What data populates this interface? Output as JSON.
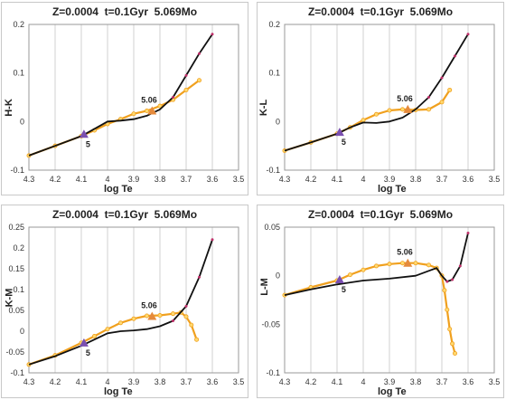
{
  "chart_data": [
    {
      "type": "line",
      "title": "Z=0.0004  t=0.1Gyr  5.069Mo",
      "xlabel": "log Te",
      "ylabel": "H-K",
      "xlim": [
        4.3,
        3.5
      ],
      "ylim": [
        -0.1,
        0.2
      ],
      "xticks": [
        "4.3",
        "4.2",
        "4.1",
        "4",
        "3.9",
        "3.8",
        "3.7",
        "3.6",
        "3.5"
      ],
      "yticks": [
        "-0.1",
        "0",
        "0.1",
        "0.2"
      ],
      "grid": "vertical",
      "series": [
        {
          "color": "#111111",
          "x": [
            4.3,
            4.2,
            4.1,
            4.05,
            4.0,
            3.95,
            3.9,
            3.85,
            3.8,
            3.75,
            3.7,
            3.65,
            3.6
          ],
          "y": [
            -0.07,
            -0.05,
            -0.03,
            -0.015,
            0.0,
            0.002,
            0.005,
            0.012,
            0.025,
            0.05,
            0.095,
            0.14,
            0.18
          ]
        },
        {
          "color": "#f0a01e",
          "x": [
            4.3,
            4.2,
            4.1,
            4.05,
            4.0,
            3.95,
            3.9,
            3.85,
            3.8,
            3.75,
            3.7,
            3.65
          ],
          "y": [
            -0.07,
            -0.05,
            -0.03,
            -0.018,
            -0.005,
            0.005,
            0.016,
            0.022,
            0.032,
            0.045,
            0.065,
            0.085
          ]
        }
      ],
      "annotations": [
        {
          "text": "5",
          "x": 4.09,
          "y": -0.026,
          "marker": "triangle",
          "color": "#7a4fb0"
        },
        {
          "text": "5.06",
          "x": 3.83,
          "y": 0.022,
          "marker": "triangle",
          "color": "#e58a3c"
        }
      ]
    },
    {
      "type": "line",
      "title": "Z=0.0004  t=0.1Gyr  5.069Mo",
      "xlabel": "log Te",
      "ylabel": "K-L",
      "xlim": [
        4.3,
        3.5
      ],
      "ylim": [
        -0.1,
        0.2
      ],
      "xticks": [
        "4.3",
        "4.2",
        "4.1",
        "4",
        "3.9",
        "3.8",
        "3.7",
        "3.6",
        "3.5"
      ],
      "yticks": [
        "-0.1",
        "0",
        "0.1",
        "0.2"
      ],
      "grid": "vertical",
      "series": [
        {
          "color": "#111111",
          "x": [
            4.3,
            4.2,
            4.1,
            4.05,
            4.0,
            3.95,
            3.9,
            3.85,
            3.8,
            3.75,
            3.7,
            3.65,
            3.6
          ],
          "y": [
            -0.06,
            -0.043,
            -0.025,
            -0.012,
            -0.002,
            -0.003,
            0.0,
            0.008,
            0.025,
            0.05,
            0.09,
            0.135,
            0.18
          ]
        },
        {
          "color": "#f0a01e",
          "x": [
            4.3,
            4.2,
            4.1,
            4.05,
            4.0,
            3.95,
            3.9,
            3.85,
            3.8,
            3.75,
            3.7,
            3.67
          ],
          "y": [
            -0.06,
            -0.043,
            -0.025,
            -0.012,
            0.003,
            0.015,
            0.023,
            0.025,
            0.024,
            0.025,
            0.04,
            0.065
          ]
        }
      ],
      "annotations": [
        {
          "text": "5",
          "x": 4.09,
          "y": -0.022,
          "marker": "triangle",
          "color": "#7a4fb0"
        },
        {
          "text": "5.06",
          "x": 3.83,
          "y": 0.025,
          "marker": "triangle",
          "color": "#e58a3c"
        }
      ]
    },
    {
      "type": "line",
      "title": "Z=0.0004  t=0.1Gyr  5.069Mo",
      "xlabel": "log Te",
      "ylabel": "K-M",
      "xlim": [
        4.3,
        3.5
      ],
      "ylim": [
        -0.1,
        0.25
      ],
      "xticks": [
        "4.3",
        "4.2",
        "4.1",
        "4",
        "3.9",
        "3.8",
        "3.7",
        "3.6",
        "3.5"
      ],
      "yticks": [
        "-0.1",
        "-0.05",
        "0",
        "0.05",
        "0.1",
        "0.15",
        "0.2",
        "0.25"
      ],
      "grid": "vertical",
      "series": [
        {
          "color": "#111111",
          "x": [
            4.3,
            4.2,
            4.1,
            4.05,
            4.0,
            3.95,
            3.9,
            3.85,
            3.8,
            3.75,
            3.7,
            3.65,
            3.6
          ],
          "y": [
            -0.08,
            -0.06,
            -0.035,
            -0.02,
            -0.005,
            0.0,
            0.002,
            0.005,
            0.012,
            0.025,
            0.06,
            0.13,
            0.22
          ]
        },
        {
          "color": "#f0a01e",
          "x": [
            4.3,
            4.2,
            4.1,
            4.05,
            4.0,
            3.95,
            3.9,
            3.85,
            3.8,
            3.75,
            3.72,
            3.7,
            3.68,
            3.66
          ],
          "y": [
            -0.08,
            -0.058,
            -0.028,
            -0.012,
            0.005,
            0.02,
            0.03,
            0.037,
            0.038,
            0.042,
            0.045,
            0.035,
            0.015,
            -0.02
          ]
        }
      ],
      "annotations": [
        {
          "text": "5",
          "x": 4.09,
          "y": -0.028,
          "marker": "triangle",
          "color": "#7a4fb0"
        },
        {
          "text": "5.06",
          "x": 3.83,
          "y": 0.036,
          "marker": "triangle",
          "color": "#e58a3c"
        }
      ]
    },
    {
      "type": "line",
      "title": "Z=0.0004  t=0.1Gyr  5.069Mo",
      "xlabel": "log Te",
      "ylabel": "L-M",
      "xlim": [
        4.3,
        3.5
      ],
      "ylim": [
        -0.1,
        0.05
      ],
      "xticks": [
        "4.3",
        "4.2",
        "4.1",
        "4",
        "3.9",
        "3.8",
        "3.7",
        "3.6",
        "3.5"
      ],
      "yticks": [
        "-0.1",
        "-0.05",
        "0",
        "0.05"
      ],
      "grid": "vertical",
      "series": [
        {
          "color": "#111111",
          "x": [
            4.3,
            4.2,
            4.1,
            4.0,
            3.9,
            3.8,
            3.75,
            3.72,
            3.7,
            3.68,
            3.66,
            3.63,
            3.6
          ],
          "y": [
            -0.02,
            -0.014,
            -0.009,
            -0.005,
            -0.003,
            0.0,
            0.005,
            0.008,
            0.0,
            -0.006,
            -0.004,
            0.01,
            0.044
          ]
        },
        {
          "color": "#f0a01e",
          "x": [
            4.3,
            4.2,
            4.1,
            4.05,
            4.0,
            3.95,
            3.9,
            3.85,
            3.8,
            3.75,
            3.72,
            3.7,
            3.69,
            3.68,
            3.67,
            3.66,
            3.65
          ],
          "y": [
            -0.02,
            -0.012,
            -0.005,
            0.001,
            0.006,
            0.01,
            0.012,
            0.013,
            0.013,
            0.011,
            0.008,
            0.0,
            -0.015,
            -0.035,
            -0.055,
            -0.07,
            -0.08
          ]
        }
      ],
      "annotations": [
        {
          "text": "5",
          "x": 4.09,
          "y": -0.004,
          "marker": "triangle",
          "color": "#7a4fb0"
        },
        {
          "text": "5.06",
          "x": 3.83,
          "y": 0.013,
          "marker": "triangle",
          "color": "#e58a3c"
        }
      ]
    }
  ]
}
